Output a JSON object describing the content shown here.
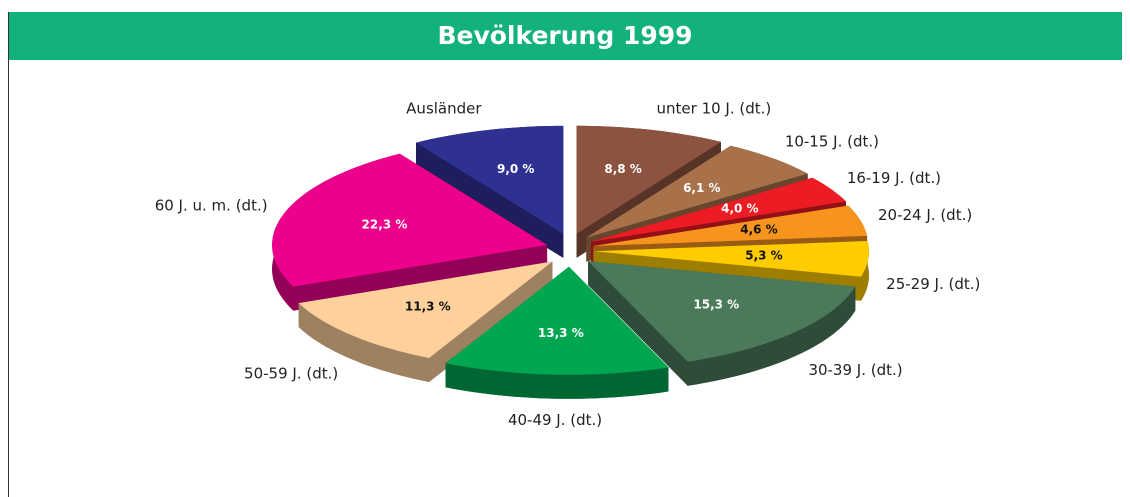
{
  "chart_data": {
    "type": "pie3d",
    "title": "Bevölkerung 1999",
    "categories": [
      "unter 10 J. (dt.)",
      "10-15 J. (dt.)",
      "16-19 J. (dt.)",
      "20-24 J. (dt.)",
      "25-29 J. (dt.)",
      "30-39 J. (dt.)",
      "40-49 J. (dt.)",
      "50-59 J. (dt.)",
      "60 J. u. m. (dt.)",
      "Ausländer"
    ],
    "values": [
      8.8,
      6.1,
      4.0,
      4.6,
      5.3,
      15.3,
      13.3,
      11.3,
      22.3,
      9.0
    ],
    "value_labels": [
      "8,8 %",
      "6,1 %",
      "4,0 %",
      "4,6 %",
      "5,3 %",
      "15,3 %",
      "13,3 %",
      "11,3 %",
      "22,3 %",
      "9,0 %"
    ],
    "colors": [
      "#8c5340",
      "#a8714a",
      "#ed1c24",
      "#f7941d",
      "#ffcc00",
      "#4a7a5a",
      "#00a650",
      "#fdd09c",
      "#ec008c",
      "#2e3192"
    ]
  }
}
